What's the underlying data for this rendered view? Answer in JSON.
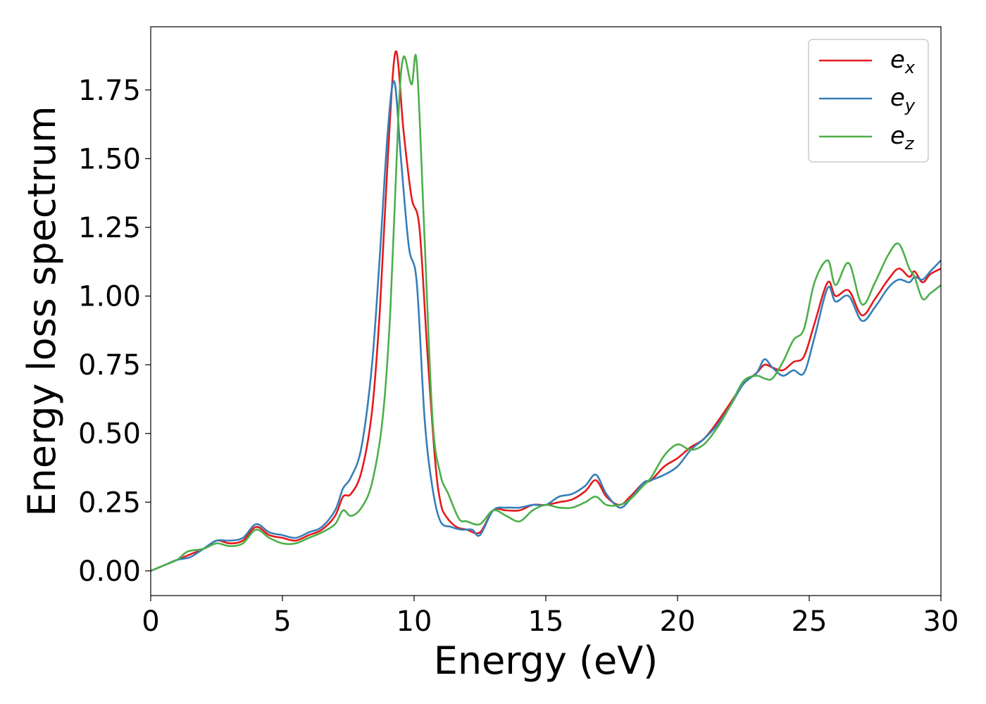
{
  "chart_data": {
    "type": "line",
    "title": "",
    "xlabel": "Energy (eV)",
    "ylabel": "Energy loss spectrum",
    "xlim": [
      0,
      30
    ],
    "ylim": [
      -0.09,
      1.98
    ],
    "xticks": [
      0,
      5,
      10,
      15,
      20,
      25,
      30
    ],
    "xtick_labels": [
      "0",
      "5",
      "10",
      "15",
      "20",
      "25",
      "30"
    ],
    "yticks": [
      0,
      0.25,
      0.5,
      0.75,
      1.0,
      1.25,
      1.5,
      1.75
    ],
    "ytick_labels": [
      "0.00",
      "0.25",
      "0.50",
      "0.75",
      "1.00",
      "1.25",
      "1.50",
      "1.75"
    ],
    "grid": false,
    "legend_position": "top-right",
    "series": [
      {
        "name": "e_x",
        "label_base": "e",
        "label_sub": "x",
        "color": "#e41a1c",
        "points": [
          [
            0,
            0.0
          ],
          [
            0.5,
            0.02
          ],
          [
            1.0,
            0.04
          ],
          [
            1.5,
            0.06
          ],
          [
            2.0,
            0.08
          ],
          [
            2.5,
            0.11
          ],
          [
            3.0,
            0.1
          ],
          [
            3.5,
            0.11
          ],
          [
            4.0,
            0.16
          ],
          [
            4.5,
            0.13
          ],
          [
            5.0,
            0.12
          ],
          [
            5.5,
            0.11
          ],
          [
            6.0,
            0.13
          ],
          [
            6.5,
            0.15
          ],
          [
            7.0,
            0.2
          ],
          [
            7.3,
            0.27
          ],
          [
            7.6,
            0.28
          ],
          [
            8.0,
            0.36
          ],
          [
            8.4,
            0.58
          ],
          [
            8.7,
            0.95
          ],
          [
            9.0,
            1.5
          ],
          [
            9.3,
            1.89
          ],
          [
            9.6,
            1.6
          ],
          [
            9.9,
            1.36
          ],
          [
            10.2,
            1.25
          ],
          [
            10.5,
            0.8
          ],
          [
            10.8,
            0.4
          ],
          [
            11.0,
            0.25
          ],
          [
            11.2,
            0.2
          ],
          [
            11.6,
            0.16
          ],
          [
            12.0,
            0.15
          ],
          [
            12.5,
            0.14
          ],
          [
            13.0,
            0.22
          ],
          [
            13.5,
            0.22
          ],
          [
            14.0,
            0.22
          ],
          [
            14.5,
            0.24
          ],
          [
            15.0,
            0.24
          ],
          [
            15.5,
            0.25
          ],
          [
            16.0,
            0.26
          ],
          [
            16.5,
            0.29
          ],
          [
            16.9,
            0.33
          ],
          [
            17.3,
            0.27
          ],
          [
            17.8,
            0.24
          ],
          [
            18.2,
            0.27
          ],
          [
            18.7,
            0.32
          ],
          [
            19.0,
            0.33
          ],
          [
            19.5,
            0.38
          ],
          [
            20.0,
            0.41
          ],
          [
            20.5,
            0.45
          ],
          [
            21.0,
            0.48
          ],
          [
            21.5,
            0.54
          ],
          [
            22.0,
            0.61
          ],
          [
            22.5,
            0.68
          ],
          [
            23.0,
            0.72
          ],
          [
            23.3,
            0.75
          ],
          [
            23.6,
            0.74
          ],
          [
            24.0,
            0.73
          ],
          [
            24.4,
            0.76
          ],
          [
            24.8,
            0.78
          ],
          [
            25.2,
            0.9
          ],
          [
            25.7,
            1.05
          ],
          [
            26.0,
            1.0
          ],
          [
            26.5,
            1.02
          ],
          [
            27.0,
            0.93
          ],
          [
            27.5,
            0.99
          ],
          [
            28.0,
            1.06
          ],
          [
            28.4,
            1.1
          ],
          [
            28.8,
            1.07
          ],
          [
            29.0,
            1.09
          ],
          [
            29.3,
            1.05
          ],
          [
            29.6,
            1.08
          ],
          [
            30.0,
            1.1
          ]
        ]
      },
      {
        "name": "e_y",
        "label_base": "e",
        "label_sub": "y",
        "color": "#377eb8",
        "points": [
          [
            0,
            0.0
          ],
          [
            0.5,
            0.02
          ],
          [
            1.0,
            0.04
          ],
          [
            1.5,
            0.05
          ],
          [
            2.0,
            0.08
          ],
          [
            2.5,
            0.11
          ],
          [
            3.0,
            0.11
          ],
          [
            3.5,
            0.12
          ],
          [
            4.0,
            0.17
          ],
          [
            4.5,
            0.14
          ],
          [
            5.0,
            0.13
          ],
          [
            5.5,
            0.12
          ],
          [
            6.0,
            0.14
          ],
          [
            6.5,
            0.16
          ],
          [
            7.0,
            0.22
          ],
          [
            7.3,
            0.3
          ],
          [
            7.6,
            0.34
          ],
          [
            8.0,
            0.45
          ],
          [
            8.4,
            0.75
          ],
          [
            8.7,
            1.15
          ],
          [
            9.0,
            1.6
          ],
          [
            9.25,
            1.78
          ],
          [
            9.5,
            1.5
          ],
          [
            9.8,
            1.18
          ],
          [
            10.1,
            1.05
          ],
          [
            10.4,
            0.55
          ],
          [
            10.7,
            0.3
          ],
          [
            11.0,
            0.18
          ],
          [
            11.4,
            0.16
          ],
          [
            11.8,
            0.15
          ],
          [
            12.2,
            0.15
          ],
          [
            12.5,
            0.13
          ],
          [
            13.0,
            0.22
          ],
          [
            13.5,
            0.23
          ],
          [
            14.0,
            0.23
          ],
          [
            14.5,
            0.24
          ],
          [
            15.0,
            0.24
          ],
          [
            15.5,
            0.27
          ],
          [
            16.0,
            0.28
          ],
          [
            16.5,
            0.31
          ],
          [
            16.9,
            0.35
          ],
          [
            17.3,
            0.28
          ],
          [
            17.8,
            0.23
          ],
          [
            18.2,
            0.26
          ],
          [
            18.7,
            0.32
          ],
          [
            19.0,
            0.33
          ],
          [
            19.5,
            0.35
          ],
          [
            20.0,
            0.38
          ],
          [
            20.5,
            0.44
          ],
          [
            21.0,
            0.48
          ],
          [
            21.5,
            0.53
          ],
          [
            22.0,
            0.6
          ],
          [
            22.5,
            0.68
          ],
          [
            23.0,
            0.72
          ],
          [
            23.3,
            0.77
          ],
          [
            23.6,
            0.74
          ],
          [
            24.0,
            0.71
          ],
          [
            24.4,
            0.73
          ],
          [
            24.8,
            0.72
          ],
          [
            25.2,
            0.85
          ],
          [
            25.7,
            1.03
          ],
          [
            26.0,
            0.98
          ],
          [
            26.5,
            1.0
          ],
          [
            27.0,
            0.91
          ],
          [
            27.5,
            0.96
          ],
          [
            28.0,
            1.03
          ],
          [
            28.4,
            1.06
          ],
          [
            28.8,
            1.05
          ],
          [
            29.0,
            1.07
          ],
          [
            29.3,
            1.06
          ],
          [
            29.6,
            1.09
          ],
          [
            30.0,
            1.13
          ]
        ]
      },
      {
        "name": "e_z",
        "label_base": "e",
        "label_sub": "z",
        "color": "#4daf4a",
        "points": [
          [
            0,
            0.0
          ],
          [
            0.5,
            0.02
          ],
          [
            1.0,
            0.04
          ],
          [
            1.4,
            0.07
          ],
          [
            2.0,
            0.08
          ],
          [
            2.5,
            0.1
          ],
          [
            3.0,
            0.09
          ],
          [
            3.5,
            0.1
          ],
          [
            4.0,
            0.15
          ],
          [
            4.5,
            0.12
          ],
          [
            5.0,
            0.1
          ],
          [
            5.5,
            0.1
          ],
          [
            6.0,
            0.12
          ],
          [
            6.5,
            0.14
          ],
          [
            7.0,
            0.17
          ],
          [
            7.3,
            0.22
          ],
          [
            7.6,
            0.2
          ],
          [
            8.0,
            0.23
          ],
          [
            8.4,
            0.32
          ],
          [
            8.8,
            0.55
          ],
          [
            9.1,
            0.95
          ],
          [
            9.4,
            1.65
          ],
          [
            9.6,
            1.87
          ],
          [
            9.9,
            1.77
          ],
          [
            10.1,
            1.85
          ],
          [
            10.4,
            1.2
          ],
          [
            10.7,
            0.55
          ],
          [
            11.0,
            0.35
          ],
          [
            11.3,
            0.28
          ],
          [
            11.7,
            0.19
          ],
          [
            12.0,
            0.18
          ],
          [
            12.5,
            0.17
          ],
          [
            13.0,
            0.22
          ],
          [
            13.5,
            0.2
          ],
          [
            14.0,
            0.18
          ],
          [
            14.5,
            0.22
          ],
          [
            15.0,
            0.24
          ],
          [
            15.5,
            0.23
          ],
          [
            16.0,
            0.23
          ],
          [
            16.5,
            0.25
          ],
          [
            16.9,
            0.27
          ],
          [
            17.3,
            0.24
          ],
          [
            17.8,
            0.24
          ],
          [
            18.2,
            0.26
          ],
          [
            18.7,
            0.31
          ],
          [
            19.0,
            0.34
          ],
          [
            19.5,
            0.42
          ],
          [
            20.0,
            0.46
          ],
          [
            20.5,
            0.44
          ],
          [
            21.0,
            0.46
          ],
          [
            21.5,
            0.52
          ],
          [
            22.0,
            0.6
          ],
          [
            22.5,
            0.69
          ],
          [
            23.0,
            0.71
          ],
          [
            23.3,
            0.7
          ],
          [
            23.6,
            0.7
          ],
          [
            24.0,
            0.76
          ],
          [
            24.4,
            0.84
          ],
          [
            24.8,
            0.88
          ],
          [
            25.2,
            1.05
          ],
          [
            25.7,
            1.13
          ],
          [
            26.0,
            1.04
          ],
          [
            26.5,
            1.12
          ],
          [
            27.0,
            0.97
          ],
          [
            27.5,
            1.05
          ],
          [
            28.0,
            1.15
          ],
          [
            28.4,
            1.19
          ],
          [
            28.8,
            1.1
          ],
          [
            29.0,
            1.07
          ],
          [
            29.3,
            0.99
          ],
          [
            29.6,
            1.01
          ],
          [
            30.0,
            1.04
          ]
        ]
      }
    ]
  }
}
